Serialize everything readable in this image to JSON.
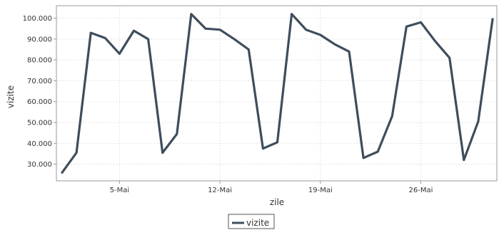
{
  "chart_data": {
    "type": "line",
    "xlabel": "zile",
    "ylabel": "vizite",
    "x_day_of_month": [
      1,
      2,
      3,
      4,
      5,
      6,
      7,
      8,
      9,
      10,
      11,
      12,
      13,
      14,
      15,
      16,
      17,
      18,
      19,
      20,
      21,
      22,
      23,
      24,
      25,
      26,
      27,
      28,
      29,
      30,
      31
    ],
    "x_tick_labels": [
      {
        "day": 5,
        "label": "5-Mai"
      },
      {
        "day": 12,
        "label": "12-Mai"
      },
      {
        "day": 19,
        "label": "19-Mai"
      },
      {
        "day": 26,
        "label": "26-Mai"
      }
    ],
    "ylim": [
      22000,
      106000
    ],
    "y_ticks": [
      30000,
      40000,
      50000,
      60000,
      70000,
      80000,
      90000,
      100000
    ],
    "y_tick_labels": [
      "30.000",
      "40.000",
      "50.000",
      "60.000",
      "70.000",
      "80.000",
      "90.000",
      "100.000"
    ],
    "grid": true,
    "legend_position": "bottom",
    "series": [
      {
        "name": "vizite",
        "color": "#3f4d5c",
        "values": [
          26000,
          35500,
          93000,
          90500,
          83000,
          94000,
          90000,
          35500,
          44500,
          102000,
          95000,
          94500,
          90000,
          85000,
          37500,
          40500,
          102000,
          94500,
          92000,
          87500,
          84000,
          33000,
          36000,
          53000,
          96000,
          98000,
          89000,
          81000,
          32000,
          50500,
          99500
        ]
      }
    ]
  }
}
